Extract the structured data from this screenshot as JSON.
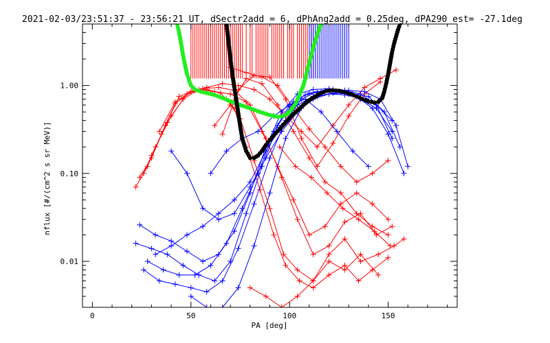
{
  "chart_data": {
    "type": "scatter",
    "title": "2021-02-03/23:51:37 - 23:56:21 UT, dSectr2add = 6, dPhAng2add = 0.25deg, dPA290_est= -27.1deg",
    "xlabel": "PA [deg]",
    "ylabel": "nflux [#/(cm^2 s sr MeV)]",
    "xlim": [
      -5,
      185
    ],
    "ylim": [
      0.003,
      5.0
    ],
    "yscale": "log",
    "x_ticks": [
      0,
      50,
      100,
      150
    ],
    "x_tick_labels": [
      "0",
      "50",
      "100",
      "150"
    ],
    "y_ticks": [
      0.01,
      0.1,
      1.0
    ],
    "y_tick_labels": [
      "0.01",
      "0.10",
      "1.00"
    ],
    "colors": {
      "red": "#ff0000",
      "blue": "#0000ff",
      "green": "#22ee22",
      "black": "#000000"
    },
    "series": [
      {
        "color": "red",
        "style": "line+plus",
        "x": [
          22,
          28,
          35,
          42,
          50,
          58,
          65,
          72,
          78,
          85,
          92,
          98,
          105,
          112,
          120,
          128,
          135,
          142,
          150
        ],
        "y": [
          0.07,
          0.12,
          0.28,
          0.62,
          0.85,
          0.9,
          0.82,
          0.55,
          0.2,
          0.065,
          0.02,
          0.009,
          0.006,
          0.005,
          0.007,
          0.009,
          0.006,
          0.008,
          0.011
        ]
      },
      {
        "color": "red",
        "style": "line+plus",
        "x": [
          24,
          30,
          37,
          44,
          52,
          60,
          68,
          75,
          82,
          90,
          97,
          104,
          112,
          120,
          128,
          136,
          145,
          153,
          158
        ],
        "y": [
          0.09,
          0.15,
          0.35,
          0.75,
          0.88,
          0.82,
          0.7,
          0.42,
          0.14,
          0.04,
          0.012,
          0.008,
          0.006,
          0.012,
          0.018,
          0.01,
          0.012,
          0.015,
          0.018
        ]
      },
      {
        "color": "red",
        "style": "line+plus",
        "x": [
          26,
          32,
          40,
          48,
          56,
          64,
          72,
          80,
          88,
          96,
          104,
          112,
          120,
          128,
          136,
          144,
          152
        ],
        "y": [
          0.1,
          0.2,
          0.45,
          0.8,
          0.92,
          0.95,
          0.88,
          0.6,
          0.25,
          0.09,
          0.03,
          0.012,
          0.015,
          0.028,
          0.035,
          0.02,
          0.025
        ]
      },
      {
        "color": "red",
        "style": "line+plus",
        "x": [
          30,
          38,
          46,
          54,
          62,
          70,
          78,
          86,
          94,
          102,
          110,
          118,
          126,
          134,
          142,
          150
        ],
        "y": [
          0.16,
          0.38,
          0.7,
          0.9,
          0.85,
          0.8,
          0.65,
          0.3,
          0.12,
          0.05,
          0.02,
          0.025,
          0.045,
          0.06,
          0.045,
          0.03
        ]
      },
      {
        "color": "red",
        "style": "line+plus",
        "x": [
          34,
          42,
          50,
          58,
          66,
          74,
          82,
          90,
          98,
          106,
          114,
          122,
          130,
          138,
          146,
          154
        ],
        "y": [
          0.3,
          0.65,
          0.85,
          0.95,
          1.05,
          1.0,
          0.9,
          0.7,
          0.45,
          0.3,
          0.2,
          0.35,
          0.6,
          0.95,
          1.2,
          1.5
        ]
      },
      {
        "color": "red",
        "style": "line+plus",
        "x": [
          62,
          70,
          78,
          86,
          94,
          102,
          110,
          118,
          126,
          134,
          142,
          150
        ],
        "y": [
          0.35,
          0.6,
          1.2,
          1.05,
          0.6,
          0.3,
          0.15,
          0.08,
          0.06,
          0.035,
          0.025,
          0.02
        ]
      },
      {
        "color": "red",
        "style": "line+plus",
        "x": [
          66,
          74,
          82,
          90,
          98,
          106,
          114,
          122,
          130,
          138,
          146
        ],
        "y": [
          0.28,
          0.9,
          1.3,
          1.25,
          0.7,
          0.25,
          0.12,
          0.22,
          0.45,
          0.8,
          1.1
        ]
      },
      {
        "color": "red",
        "style": "line+plus",
        "x": [
          70,
          78,
          86,
          94,
          102,
          110,
          118,
          126,
          134,
          142,
          150
        ],
        "y": [
          1.6,
          1.4,
          1.25,
          1.0,
          0.55,
          0.32,
          0.2,
          0.12,
          0.08,
          0.1,
          0.14
        ]
      },
      {
        "color": "red",
        "style": "line+plus",
        "x": [
          95,
          103,
          111,
          119,
          127,
          135,
          143,
          151
        ],
        "y": [
          0.2,
          0.12,
          0.09,
          0.06,
          0.04,
          0.03,
          0.022,
          0.015
        ]
      },
      {
        "color": "red",
        "style": "line+plus",
        "x": [
          80,
          88,
          96,
          104,
          112,
          120,
          128,
          136,
          145
        ],
        "y": [
          0.005,
          0.004,
          0.003,
          0.004,
          0.006,
          0.01,
          0.008,
          0.012,
          0.007
        ]
      },
      {
        "color": "blue",
        "style": "line+plus",
        "x": [
          22,
          30,
          38,
          46,
          54,
          62,
          70,
          78,
          86,
          94,
          102,
          110,
          118,
          126,
          134,
          142,
          150,
          158
        ],
        "y": [
          0.016,
          0.014,
          0.012,
          0.009,
          0.007,
          0.006,
          0.01,
          0.035,
          0.12,
          0.35,
          0.65,
          0.82,
          0.88,
          0.85,
          0.75,
          0.55,
          0.28,
          0.1
        ]
      },
      {
        "color": "blue",
        "style": "line+plus",
        "x": [
          24,
          32,
          40,
          48,
          56,
          64,
          72,
          80,
          88,
          96,
          104,
          112,
          120,
          128,
          136,
          144,
          152
        ],
        "y": [
          0.026,
          0.02,
          0.017,
          0.013,
          0.01,
          0.012,
          0.022,
          0.06,
          0.2,
          0.5,
          0.8,
          0.9,
          0.92,
          0.88,
          0.8,
          0.6,
          0.25
        ]
      },
      {
        "color": "blue",
        "style": "line+plus",
        "x": [
          26,
          34,
          42,
          50,
          58,
          66,
          74,
          82,
          90,
          98,
          106,
          114,
          122,
          130,
          138,
          146,
          154,
          160
        ],
        "y": [
          0.008,
          0.006,
          0.0055,
          0.005,
          0.0045,
          0.006,
          0.014,
          0.045,
          0.15,
          0.4,
          0.7,
          0.85,
          0.9,
          0.88,
          0.85,
          0.7,
          0.35,
          0.12
        ]
      },
      {
        "color": "blue",
        "style": "line+plus",
        "x": [
          28,
          36,
          44,
          52,
          60,
          68,
          76,
          84,
          92,
          100,
          108,
          116,
          124,
          132,
          140,
          148,
          156
        ],
        "y": [
          0.01,
          0.008,
          0.007,
          0.007,
          0.009,
          0.016,
          0.04,
          0.1,
          0.3,
          0.6,
          0.78,
          0.85,
          0.85,
          0.8,
          0.75,
          0.5,
          0.2
        ]
      },
      {
        "color": "blue",
        "style": "line+plus",
        "x": [
          40,
          48,
          56,
          64,
          72,
          80,
          88,
          96,
          104,
          112,
          120,
          128,
          136,
          144,
          152
        ],
        "y": [
          0.18,
          0.1,
          0.04,
          0.03,
          0.035,
          0.07,
          0.15,
          0.3,
          0.5,
          0.7,
          0.8,
          0.82,
          0.7,
          0.55,
          0.3
        ]
      },
      {
        "color": "blue",
        "style": "line+plus",
        "x": [
          32,
          40,
          48,
          56,
          64,
          72,
          80,
          88,
          96,
          104,
          112,
          120,
          128,
          136,
          144,
          152
        ],
        "y": [
          0.012,
          0.015,
          0.02,
          0.025,
          0.035,
          0.05,
          0.08,
          0.18,
          0.35,
          0.6,
          0.75,
          0.8,
          0.78,
          0.72,
          0.6,
          0.4
        ]
      },
      {
        "color": "blue",
        "style": "line+plus",
        "x": [
          50,
          58,
          66,
          74,
          82,
          90,
          98,
          106,
          114,
          122,
          130
        ],
        "y": [
          0.004,
          0.003,
          0.003,
          0.005,
          0.015,
          0.06,
          0.25,
          0.55,
          0.75,
          0.82,
          0.8
        ]
      },
      {
        "color": "blue",
        "style": "line+plus",
        "x": [
          60,
          68,
          76,
          84,
          92,
          100,
          108,
          116,
          124,
          132,
          140
        ],
        "y": [
          0.1,
          0.18,
          0.25,
          0.3,
          0.45,
          0.6,
          0.7,
          0.5,
          0.3,
          0.18,
          0.12
        ]
      },
      {
        "color": "green",
        "style": "dots",
        "x": [
          43,
          44,
          45,
          46,
          47,
          48,
          49,
          50,
          52,
          55,
          58,
          62,
          66,
          70,
          75,
          80,
          85,
          90,
          94,
          97,
          100,
          103,
          105,
          107,
          108,
          109,
          110,
          111,
          112,
          113,
          114,
          115,
          116
        ],
        "y": [
          5.0,
          4.0,
          3.0,
          2.2,
          1.7,
          1.35,
          1.15,
          1.0,
          0.9,
          0.85,
          0.82,
          0.78,
          0.72,
          0.66,
          0.6,
          0.55,
          0.5,
          0.46,
          0.44,
          0.45,
          0.5,
          0.62,
          0.78,
          1.0,
          1.2,
          1.5,
          1.8,
          2.2,
          2.7,
          3.2,
          3.8,
          4.4,
          5.0
        ]
      },
      {
        "color": "black",
        "style": "dots",
        "x": [
          68,
          69,
          70,
          71,
          72,
          73,
          74,
          75,
          76,
          78,
          80,
          82,
          84,
          86,
          88,
          90,
          92,
          95,
          98,
          101,
          104,
          107,
          110,
          113,
          116,
          119,
          122,
          125,
          128,
          131,
          134,
          137,
          140,
          143,
          145,
          147,
          148,
          149,
          150,
          151,
          152,
          153,
          154,
          155,
          156
        ],
        "y": [
          5.0,
          3.2,
          2.0,
          1.35,
          0.95,
          0.68,
          0.48,
          0.34,
          0.25,
          0.18,
          0.15,
          0.15,
          0.16,
          0.18,
          0.21,
          0.24,
          0.27,
          0.32,
          0.38,
          0.45,
          0.52,
          0.6,
          0.68,
          0.75,
          0.82,
          0.87,
          0.88,
          0.87,
          0.84,
          0.8,
          0.75,
          0.7,
          0.66,
          0.64,
          0.65,
          0.72,
          0.85,
          1.05,
          1.35,
          1.8,
          2.4,
          3.0,
          3.6,
          4.3,
          5.0
        ]
      }
    ],
    "red_verticals_x": [
      50,
      51,
      52,
      53,
      54,
      55,
      56,
      57,
      58,
      59,
      60,
      61,
      62,
      63,
      64,
      65,
      66,
      67,
      68,
      69,
      70,
      71,
      72,
      73,
      74,
      75,
      76,
      78,
      80,
      81,
      83,
      84,
      85,
      86,
      87,
      88,
      89,
      91,
      92,
      93,
      94,
      95,
      96,
      97,
      99,
      100,
      101,
      102,
      104,
      105,
      106,
      107,
      108,
      109,
      111,
      112
    ],
    "blue_verticals_x": [
      110,
      111,
      112,
      113,
      114,
      115,
      116,
      117,
      118,
      119,
      120,
      121,
      122,
      123,
      124,
      125,
      126,
      127,
      128,
      129,
      130
    ]
  }
}
